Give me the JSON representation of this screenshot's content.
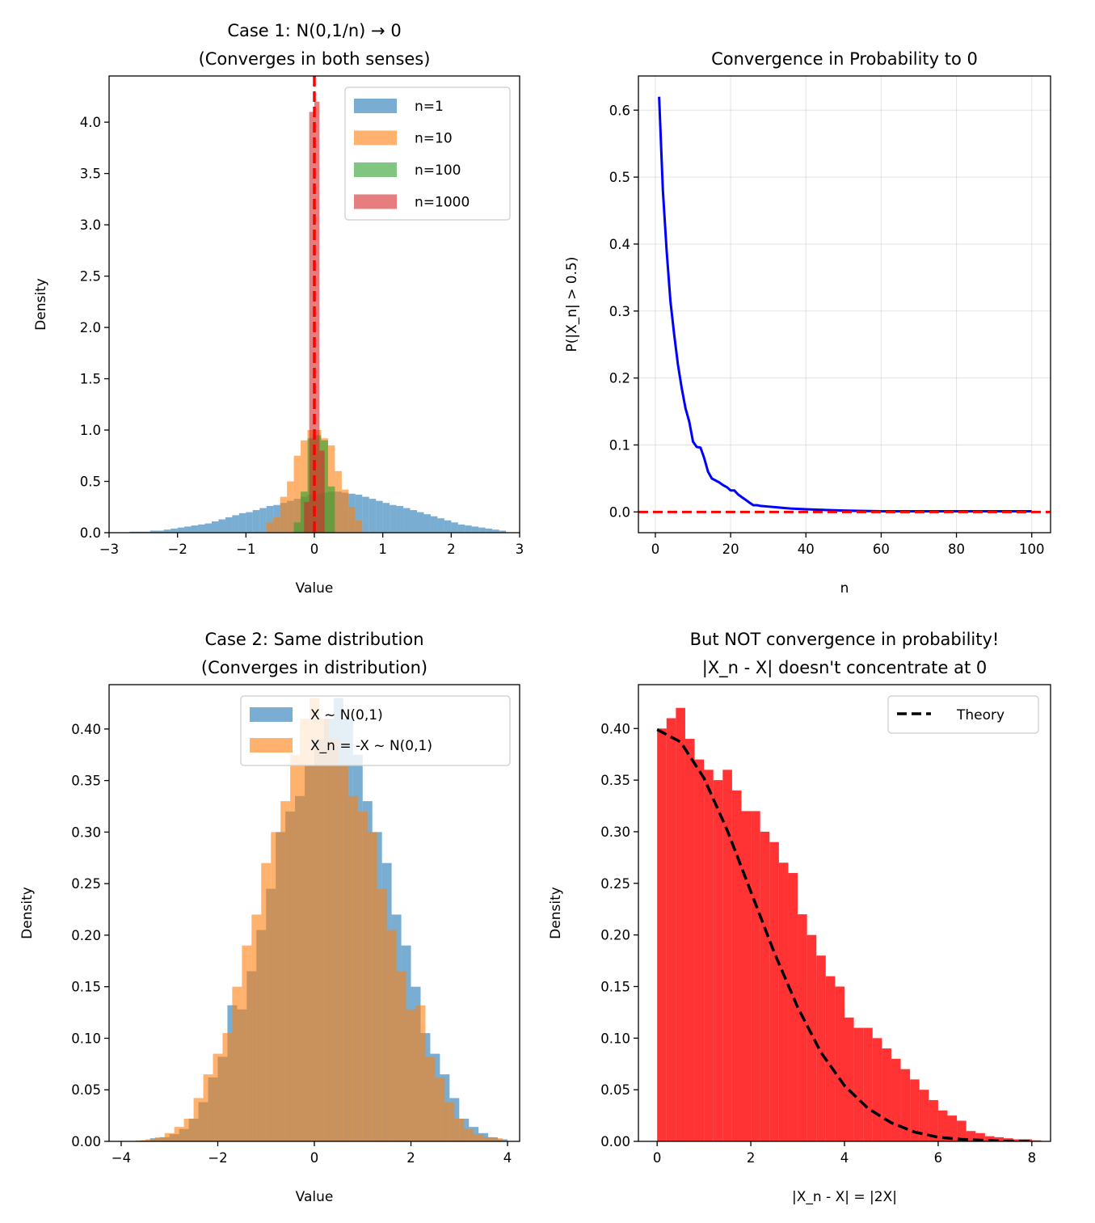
{
  "chart_data": [
    {
      "type": "histogram",
      "title": [
        "Case 1: N(0,1/n) → 0",
        "(Converges in both senses)"
      ],
      "xlabel": "Value",
      "ylabel": "Density",
      "xlim": [
        -3,
        3
      ],
      "ylim": [
        0,
        4.45
      ],
      "xticks": [
        -3,
        -2,
        -1,
        0,
        1,
        2,
        3
      ],
      "xtick_labels": [
        "−3",
        "−2",
        "−1",
        "0",
        "1",
        "2",
        "3"
      ],
      "yticks": [
        0,
        0.5,
        1,
        1.5,
        2,
        2.5,
        3,
        3.5,
        4
      ],
      "ytick_labels": [
        "0.0",
        "0.5",
        "1.0",
        "1.5",
        "2.0",
        "2.5",
        "3.0",
        "3.5",
        "4.0"
      ],
      "grid": false,
      "legend": "upper right",
      "reference_line": {
        "x": 0,
        "color": "#ff0000",
        "style": "dashed"
      },
      "series": [
        {
          "name": "n=1",
          "color": "#1f77b4",
          "opacity": 0.6,
          "bin_start": -2.7,
          "bin_width": 0.1,
          "values": [
            0.01,
            0.01,
            0.01,
            0.02,
            0.02,
            0.03,
            0.04,
            0.05,
            0.06,
            0.07,
            0.08,
            0.09,
            0.11,
            0.13,
            0.15,
            0.17,
            0.19,
            0.2,
            0.22,
            0.24,
            0.26,
            0.27,
            0.29,
            0.31,
            0.33,
            0.35,
            0.37,
            0.38,
            0.39,
            0.4,
            0.4,
            0.39,
            0.38,
            0.37,
            0.35,
            0.33,
            0.31,
            0.29,
            0.27,
            0.26,
            0.24,
            0.22,
            0.2,
            0.18,
            0.16,
            0.14,
            0.12,
            0.1,
            0.08,
            0.07,
            0.06,
            0.05,
            0.04,
            0.03,
            0.02
          ]
        },
        {
          "name": "n=10",
          "color": "#ff7f0e",
          "opacity": 0.6,
          "bin_start": -0.7,
          "bin_width": 0.1,
          "values": [
            0.1,
            0.15,
            0.35,
            0.5,
            0.75,
            0.9,
            1.0,
            1.0,
            0.92,
            0.85,
            0.6,
            0.42,
            0.25,
            0.12
          ]
        },
        {
          "name": "n=100",
          "color": "#2ca02c",
          "opacity": 0.6,
          "bin_start": -0.3,
          "bin_width": 0.1,
          "values": [
            0.1,
            0.4,
            0.92,
            0.95,
            0.9,
            0.45
          ]
        },
        {
          "name": "n=1000",
          "color": "#d62728",
          "opacity": 0.6,
          "bin_start": -0.15,
          "bin_width": 0.075,
          "values": [
            0.3,
            4.1,
            4.2,
            0.8
          ]
        }
      ]
    },
    {
      "type": "line",
      "title": [
        "Convergence in Probability to 0"
      ],
      "xlabel": "n",
      "ylabel": "P(|X_n| > 0.5)",
      "xlim": [
        -4.5,
        105
      ],
      "ylim": [
        -0.031,
        0.651
      ],
      "xticks": [
        0,
        20,
        40,
        60,
        80,
        100
      ],
      "xtick_labels": [
        "0",
        "20",
        "40",
        "60",
        "80",
        "100"
      ],
      "yticks": [
        0,
        0.1,
        0.2,
        0.3,
        0.4,
        0.5,
        0.6
      ],
      "ytick_labels": [
        "0.0",
        "0.1",
        "0.2",
        "0.3",
        "0.4",
        "0.5",
        "0.6"
      ],
      "grid": true,
      "reference_line": {
        "y": 0,
        "color": "#ff0000",
        "style": "dashed"
      },
      "series": [
        {
          "name": "",
          "color": "#0000ff",
          "x": [
            1,
            2,
            3,
            4,
            5,
            6,
            7,
            8,
            9,
            10,
            11,
            12,
            13,
            14,
            15,
            16,
            17,
            18,
            19,
            20,
            21,
            22,
            23,
            24,
            25,
            26,
            27,
            28,
            30,
            32,
            34,
            36,
            40,
            45,
            50,
            60,
            70,
            80,
            90,
            100
          ],
          "y": [
            0.62,
            0.48,
            0.39,
            0.315,
            0.265,
            0.22,
            0.185,
            0.155,
            0.135,
            0.105,
            0.097,
            0.096,
            0.08,
            0.06,
            0.05,
            0.047,
            0.044,
            0.04,
            0.037,
            0.032,
            0.032,
            0.026,
            0.022,
            0.018,
            0.014,
            0.01,
            0.01,
            0.009,
            0.008,
            0.007,
            0.006,
            0.005,
            0.004,
            0.003,
            0.002,
            0.001,
            0.001,
            0.001,
            0.001,
            0.001
          ]
        }
      ]
    },
    {
      "type": "histogram",
      "title": [
        "Case 2: Same distribution",
        "(Converges in distribution)"
      ],
      "xlabel": "Value",
      "ylabel": "Density",
      "xlim": [
        -4.25,
        4.25
      ],
      "ylim": [
        0,
        0.443
      ],
      "xticks": [
        -4,
        -2,
        0,
        2,
        4
      ],
      "xtick_labels": [
        "−4",
        "−2",
        "0",
        "2",
        "4"
      ],
      "yticks": [
        0,
        0.05,
        0.1,
        0.15,
        0.2,
        0.25,
        0.3,
        0.35,
        0.4
      ],
      "ytick_labels": [
        "0.00",
        "0.05",
        "0.10",
        "0.15",
        "0.20",
        "0.25",
        "0.30",
        "0.35",
        "0.40"
      ],
      "grid": false,
      "legend": "upper right",
      "series": [
        {
          "name": "X ~ N(0,1)",
          "color": "#1f77b4",
          "opacity": 0.6,
          "bin_start": -3.6,
          "bin_width": 0.2,
          "values": [
            0.001,
            0.003,
            0.004,
            0.007,
            0.012,
            0.022,
            0.038,
            0.062,
            0.082,
            0.132,
            0.128,
            0.165,
            0.205,
            0.245,
            0.3,
            0.32,
            0.335,
            0.365,
            0.39,
            0.41,
            0.43,
            0.41,
            0.375,
            0.33,
            0.3,
            0.27,
            0.22,
            0.19,
            0.15,
            0.105,
            0.085,
            0.065,
            0.042,
            0.022,
            0.014,
            0.008,
            0.004,
            0.002
          ]
        },
        {
          "name": "X_n = -X ~ N(0,1)",
          "color": "#ff7f0e",
          "opacity": 0.6,
          "bin_start": -3.7,
          "bin_width": 0.2,
          "values": [
            0.001,
            0.002,
            0.004,
            0.008,
            0.014,
            0.022,
            0.042,
            0.065,
            0.085,
            0.105,
            0.15,
            0.19,
            0.22,
            0.27,
            0.3,
            0.33,
            0.375,
            0.41,
            0.43,
            0.41,
            0.39,
            0.365,
            0.335,
            0.32,
            0.3,
            0.245,
            0.205,
            0.165,
            0.128,
            0.132,
            0.082,
            0.062,
            0.038,
            0.022,
            0.012,
            0.007,
            0.004,
            0.003
          ]
        }
      ]
    },
    {
      "type": "histogram",
      "title": [
        "But NOT convergence in probability!",
        "|X_n - X| doesn't concentrate at 0"
      ],
      "xlabel": "|X_n - X| = |2X|",
      "ylabel": "Density",
      "xlim": [
        -0.4,
        8.4
      ],
      "ylim": [
        0,
        0.4425
      ],
      "xticks": [
        0,
        2,
        4,
        6,
        8
      ],
      "xtick_labels": [
        "0",
        "2",
        "4",
        "6",
        "8"
      ],
      "yticks": [
        0,
        0.05,
        0.1,
        0.15,
        0.2,
        0.25,
        0.3,
        0.35,
        0.4
      ],
      "ytick_labels": [
        "0.00",
        "0.05",
        "0.10",
        "0.15",
        "0.20",
        "0.25",
        "0.30",
        "0.35",
        "0.40"
      ],
      "grid": false,
      "legend": "upper right",
      "series": [
        {
          "name": "",
          "color": "#ff0000",
          "opacity": 0.8,
          "bin_start": 0,
          "bin_width": 0.2,
          "values": [
            0.4,
            0.41,
            0.42,
            0.39,
            0.37,
            0.36,
            0.35,
            0.36,
            0.34,
            0.32,
            0.32,
            0.3,
            0.29,
            0.27,
            0.26,
            0.22,
            0.2,
            0.18,
            0.16,
            0.15,
            0.12,
            0.11,
            0.11,
            0.1,
            0.09,
            0.08,
            0.07,
            0.06,
            0.05,
            0.04,
            0.03,
            0.025,
            0.02,
            0.01,
            0.008,
            0.005,
            0.004,
            0.003,
            0.002,
            0.002,
            0.001
          ]
        },
        {
          "name": "Theory",
          "color": "#000000",
          "style": "dashed",
          "kind": "line",
          "x": [
            0,
            0.5,
            1,
            1.5,
            2,
            2.5,
            3,
            3.5,
            4,
            4.5,
            5,
            5.5,
            6,
            6.5,
            7,
            7.5,
            8
          ],
          "y": [
            0.399,
            0.387,
            0.352,
            0.301,
            0.242,
            0.183,
            0.13,
            0.086,
            0.054,
            0.032,
            0.018,
            0.009,
            0.004,
            0.002,
            0.001,
            0,
            0
          ]
        }
      ]
    }
  ]
}
